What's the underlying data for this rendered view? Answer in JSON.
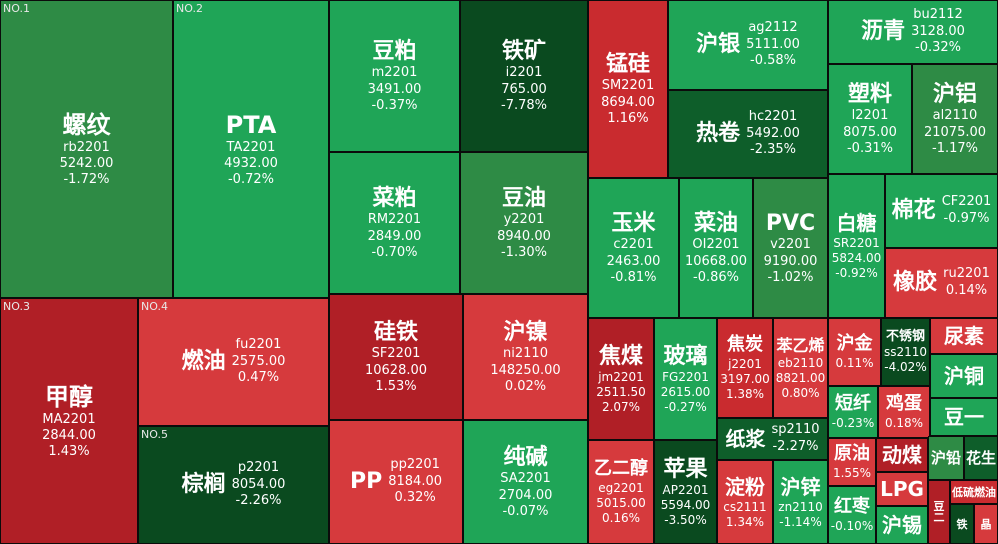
{
  "tiles": [
    {
      "name": "螺纹",
      "code": "rb2201",
      "price": "5242.00",
      "change": "-1.72%",
      "rank": "NO.1"
    },
    {
      "name": "PTA",
      "code": "TA2201",
      "price": "4932.00",
      "change": "-0.72%",
      "rank": "NO.2"
    },
    {
      "name": "豆粕",
      "code": "m2201",
      "price": "3491.00",
      "change": "-0.37%"
    },
    {
      "name": "铁矿",
      "code": "i2201",
      "price": "765.00",
      "change": "-7.78%"
    },
    {
      "name": "锰硅",
      "code": "SM2201",
      "price": "8694.00",
      "change": "1.16%"
    },
    {
      "name": "沪银",
      "code": "ag2112",
      "price": "5111.00",
      "change": "-0.58%"
    },
    {
      "name": "沥青",
      "code": "bu2112",
      "price": "3128.00",
      "change": "-0.32%"
    },
    {
      "name": "热卷",
      "code": "hc2201",
      "price": "5492.00",
      "change": "-2.35%"
    },
    {
      "name": "塑料",
      "code": "l2201",
      "price": "8075.00",
      "change": "-0.31%"
    },
    {
      "name": "沪铝",
      "code": "al2110",
      "price": "21075.00",
      "change": "-1.17%"
    },
    {
      "name": "菜粕",
      "code": "RM2201",
      "price": "2849.00",
      "change": "-0.70%"
    },
    {
      "name": "豆油",
      "code": "y2201",
      "price": "8940.00",
      "change": "-1.30%"
    },
    {
      "name": "玉米",
      "code": "c2201",
      "price": "2463.00",
      "change": "-0.81%"
    },
    {
      "name": "菜油",
      "code": "OI2201",
      "price": "10668.00",
      "change": "-0.86%"
    },
    {
      "name": "PVC",
      "code": "v2201",
      "price": "9190.00",
      "change": "-1.02%"
    },
    {
      "name": "白糖",
      "code": "SR2201",
      "price": "5824.00",
      "change": "-0.92%"
    },
    {
      "name": "棉花",
      "code": "CF2201",
      "price": "",
      "change": "-0.97%"
    },
    {
      "name": "橡胶",
      "code": "ru2201",
      "price": "",
      "change": "0.14%"
    },
    {
      "name": "甲醇",
      "code": "MA2201",
      "price": "2844.00",
      "change": "1.43%",
      "rank": "NO.3"
    },
    {
      "name": "燃油",
      "code": "fu2201",
      "price": "2575.00",
      "change": "0.47%",
      "rank": "NO.4"
    },
    {
      "name": "硅铁",
      "code": "SF2201",
      "price": "10628.00",
      "change": "1.53%"
    },
    {
      "name": "沪镍",
      "code": "ni2110",
      "price": "148250.00",
      "change": "0.02%"
    },
    {
      "name": "焦煤",
      "code": "jm2201",
      "price": "2511.50",
      "change": "2.07%"
    },
    {
      "name": "玻璃",
      "code": "FG2201",
      "price": "2615.00",
      "change": "-0.27%"
    },
    {
      "name": "焦炭",
      "code": "j2201",
      "price": "3197.00",
      "change": "1.38%"
    },
    {
      "name": "苯乙烯",
      "code": "eb2110",
      "price": "8821.00",
      "change": "0.80%"
    },
    {
      "name": "沪金",
      "code": "",
      "price": "",
      "change": "0.11%"
    },
    {
      "name": "不锈钢",
      "code": "ss2110",
      "price": "",
      "change": "-4.02%"
    },
    {
      "name": "尿素",
      "code": "",
      "price": "",
      "change": ""
    },
    {
      "name": "沪铜",
      "code": "",
      "price": "",
      "change": ""
    },
    {
      "name": "短纤",
      "code": "",
      "price": "",
      "change": "-0.23%"
    },
    {
      "name": "鸡蛋",
      "code": "",
      "price": "",
      "change": "0.18%"
    },
    {
      "name": "豆一",
      "code": "",
      "price": "",
      "change": ""
    },
    {
      "name": "棕榈",
      "code": "p2201",
      "price": "8054.00",
      "change": "-2.26%",
      "rank": "NO.5"
    },
    {
      "name": "PP",
      "code": "pp2201",
      "price": "8184.00",
      "change": "0.32%"
    },
    {
      "name": "纯碱",
      "code": "SA2201",
      "price": "2704.00",
      "change": "-0.07%"
    },
    {
      "name": "乙二醇",
      "code": "eg2201",
      "price": "5015.00",
      "change": "0.16%"
    },
    {
      "name": "苹果",
      "code": "AP2201",
      "price": "5594.00",
      "change": "-3.50%"
    },
    {
      "name": "纸浆",
      "code": "sp2110",
      "price": "",
      "change": "-2.27%"
    },
    {
      "name": "淀粉",
      "code": "cs2111",
      "price": "",
      "change": "1.34%"
    },
    {
      "name": "沪锌",
      "code": "zn2110",
      "price": "",
      "change": "-1.14%"
    },
    {
      "name": "原油",
      "code": "",
      "price": "",
      "change": "1.55%"
    },
    {
      "name": "动煤",
      "code": "",
      "price": "",
      "change": ""
    },
    {
      "name": "沪铅",
      "code": "",
      "price": "",
      "change": ""
    },
    {
      "name": "花生",
      "code": "",
      "price": "",
      "change": ""
    },
    {
      "name": "红枣",
      "code": "",
      "price": "",
      "change": "-0.10%"
    },
    {
      "name": "LPG",
      "code": "",
      "price": "",
      "change": ""
    },
    {
      "name": "沪锡",
      "code": "",
      "price": "",
      "change": ""
    },
    {
      "name": "豆二",
      "code": "",
      "price": "",
      "change": ""
    },
    {
      "name": "低硫燃油",
      "code": "",
      "price": "",
      "change": ""
    },
    {
      "name": "铁",
      "code": "",
      "price": "",
      "change": ""
    },
    {
      "name": "晶",
      "code": "",
      "price": "",
      "change": ""
    }
  ]
}
